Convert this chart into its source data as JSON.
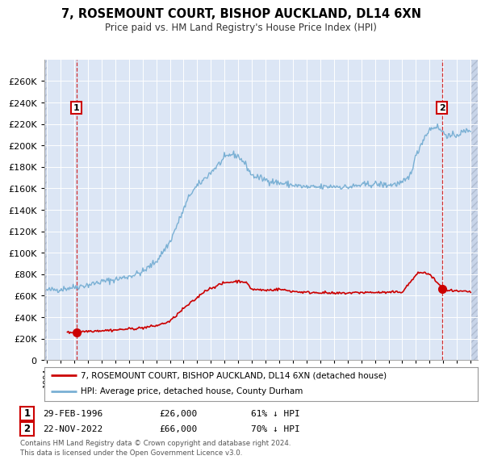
{
  "title": "7, ROSEMOUNT COURT, BISHOP AUCKLAND, DL14 6XN",
  "subtitle": "Price paid vs. HM Land Registry's House Price Index (HPI)",
  "legend_line1": "7, ROSEMOUNT COURT, BISHOP AUCKLAND, DL14 6XN (detached house)",
  "legend_line2": "HPI: Average price, detached house, County Durham",
  "transaction1_date": "29-FEB-1996",
  "transaction1_price": "£26,000",
  "transaction1_hpi": "61% ↓ HPI",
  "transaction2_date": "22-NOV-2022",
  "transaction2_price": "£66,000",
  "transaction2_hpi": "70% ↓ HPI",
  "footnote": "Contains HM Land Registry data © Crown copyright and database right 2024.\nThis data is licensed under the Open Government Licence v3.0.",
  "price_color": "#cc0000",
  "hpi_color": "#7ab0d4",
  "transaction_dot1_date": 1996.16,
  "transaction_dot1_value": 26000,
  "transaction_dot2_date": 2022.9,
  "transaction_dot2_value": 66000,
  "vline1_date": 1996.16,
  "vline2_date": 2022.9,
  "ylim_max": 280000,
  "xlim_min": 1993.8,
  "xlim_max": 2025.5,
  "plot_bg_color": "#dce6f5",
  "hatch_color": "#c8d4e8"
}
